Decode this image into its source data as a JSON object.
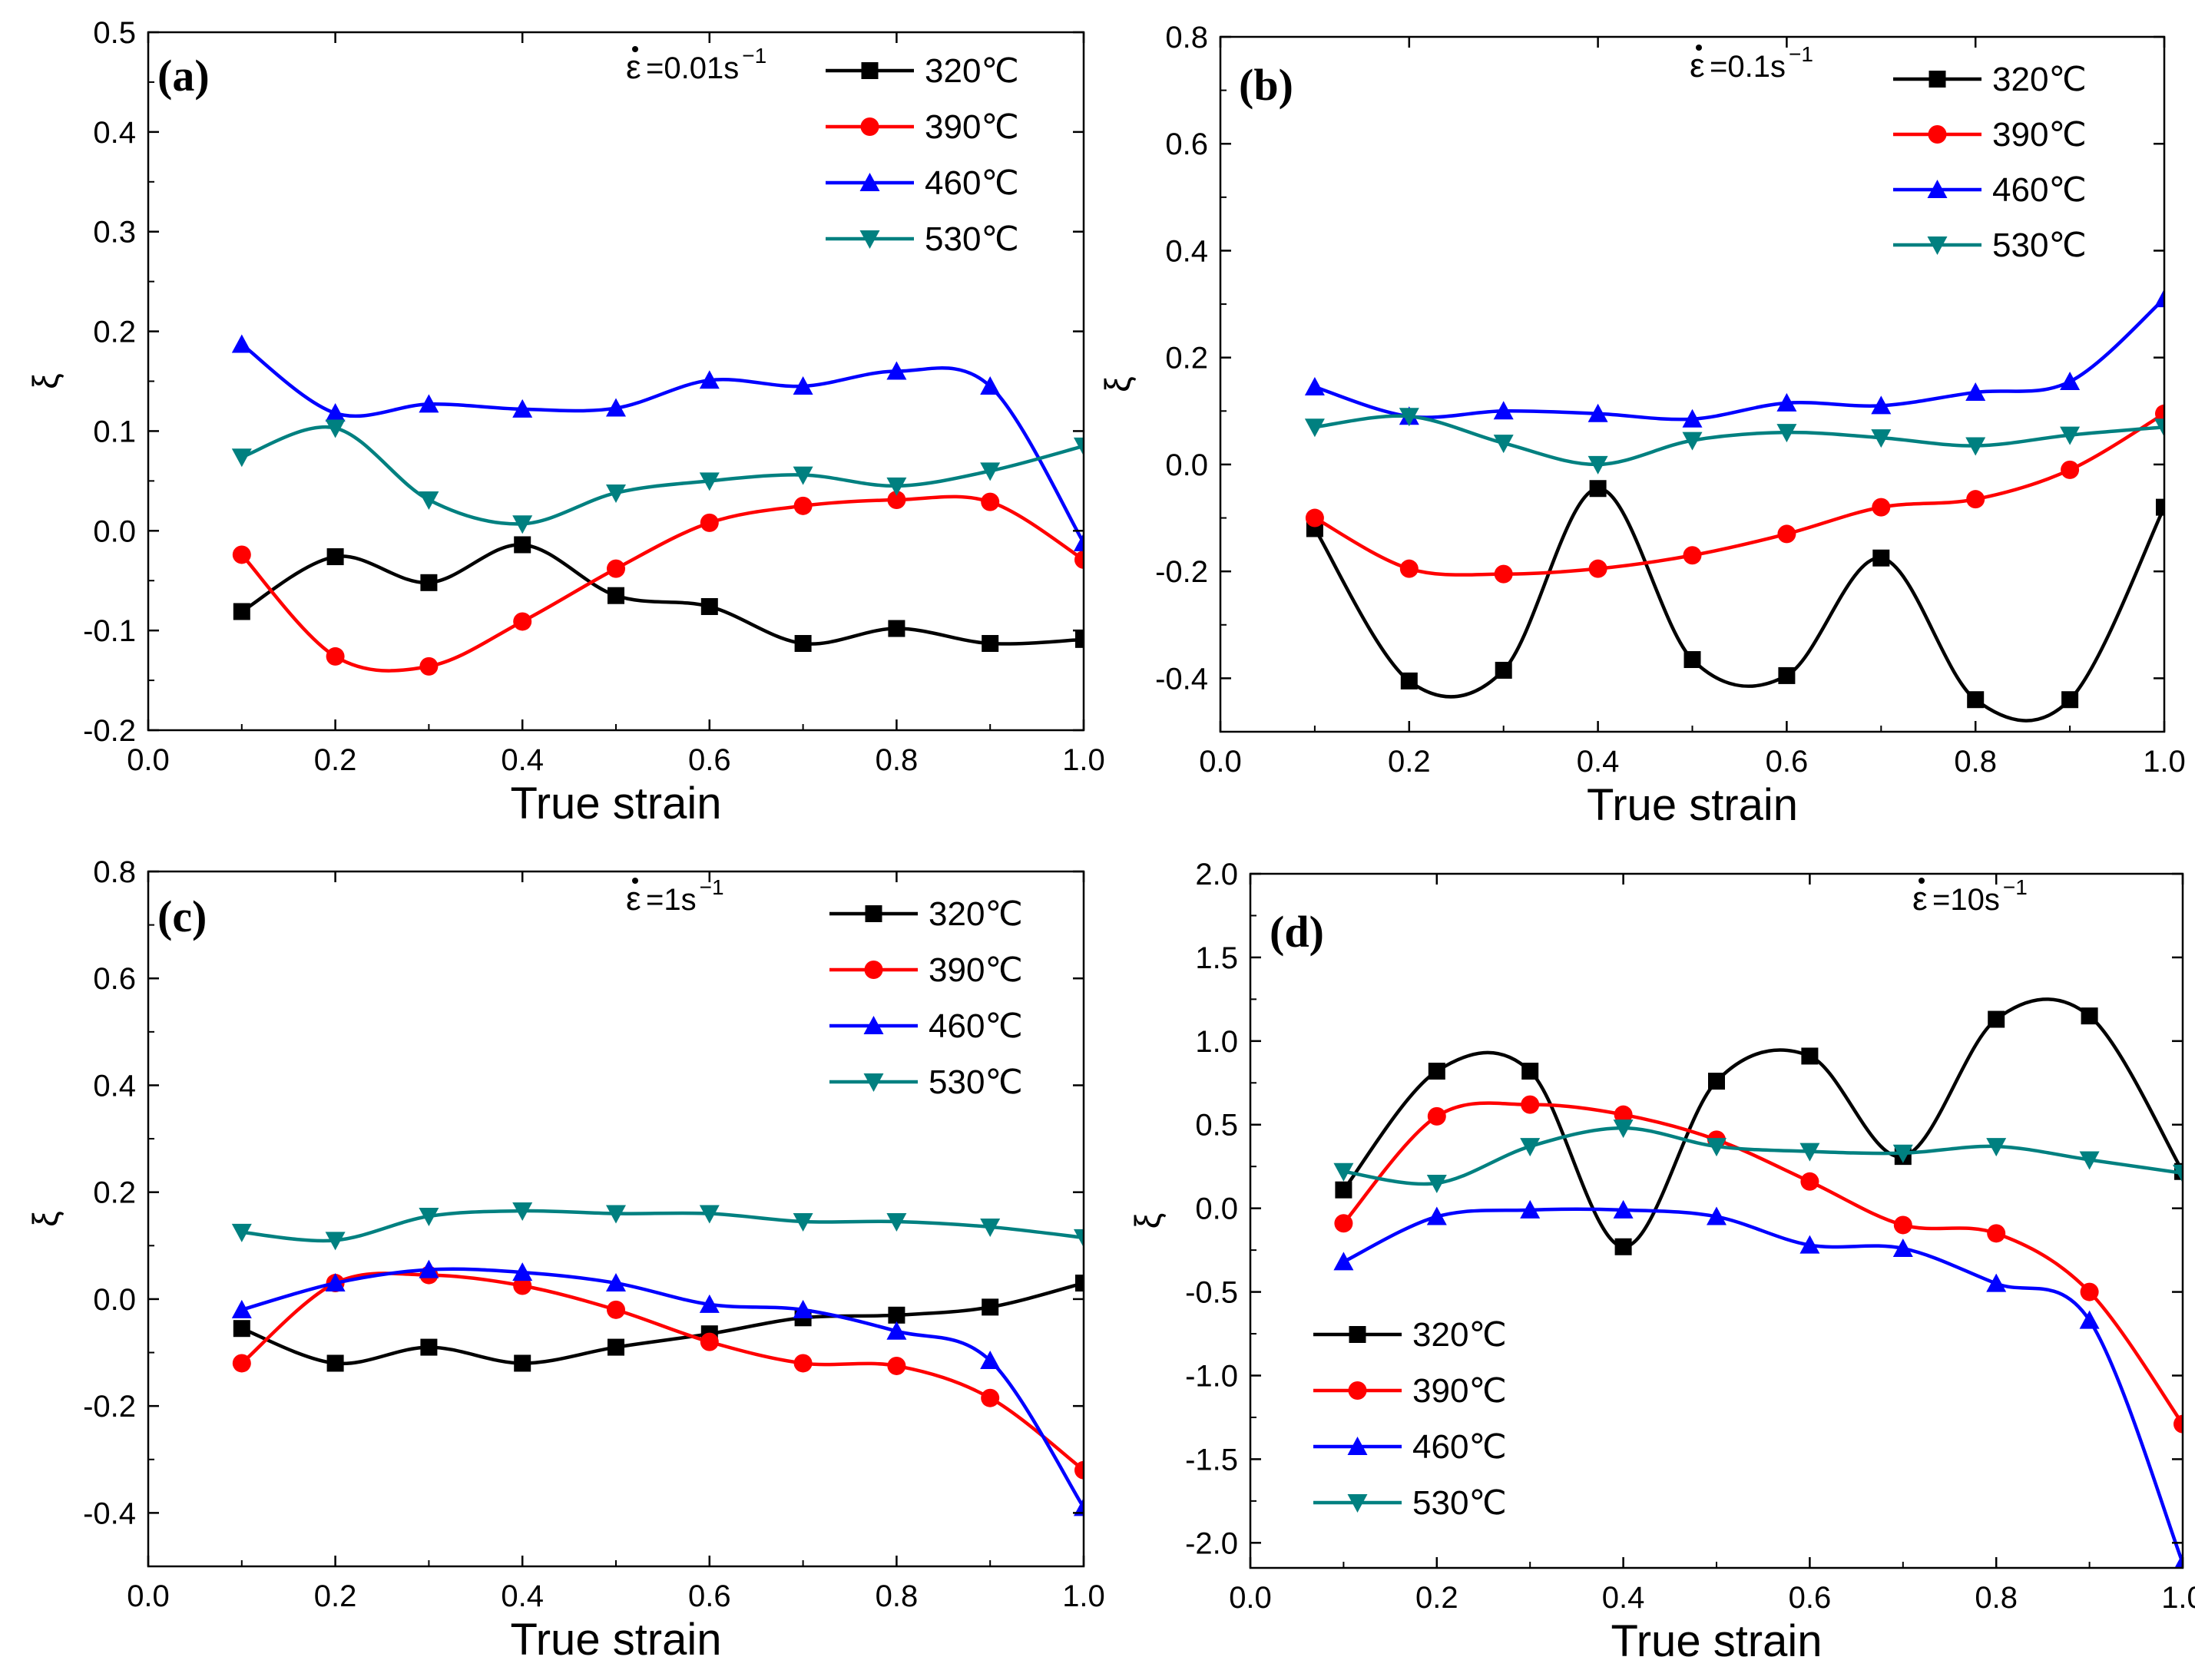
{
  "chart_data": [
    {
      "type": "line",
      "panel_label": "(a)",
      "rate_symbol": "ε",
      "rate_text": "=0.01s",
      "rate_exp": "−1",
      "xlabel": "True strain",
      "ylabel": "ξ",
      "xlim": [
        0.0,
        1.0
      ],
      "ylim": [
        -0.2,
        0.5
      ],
      "xticks": [
        "0.0",
        "0.2",
        "0.4",
        "0.6",
        "0.8",
        "1.0"
      ],
      "yticks": [
        "-0.2",
        "-0.1",
        "0.0",
        "0.1",
        "0.2",
        "0.3",
        "0.4",
        "0.5"
      ],
      "legend_position": "top-right",
      "x": [
        0.1,
        0.2,
        0.3,
        0.4,
        0.5,
        0.6,
        0.7,
        0.8,
        0.9,
        1.0
      ],
      "series": [
        {
          "name": "320℃",
          "color": "#000000",
          "marker": "square",
          "values": [
            -0.081,
            -0.026,
            -0.052,
            -0.014,
            -0.065,
            -0.076,
            -0.113,
            -0.098,
            -0.113,
            -0.109
          ]
        },
        {
          "name": "390℃",
          "color": "#ff0000",
          "marker": "circle",
          "values": [
            -0.024,
            -0.126,
            -0.136,
            -0.091,
            -0.038,
            0.008,
            0.025,
            0.031,
            0.029,
            -0.029
          ]
        },
        {
          "name": "460℃",
          "color": "#0000ff",
          "marker": "triangle-up",
          "values": [
            0.187,
            0.118,
            0.127,
            0.122,
            0.123,
            0.151,
            0.145,
            0.16,
            0.145,
            -0.012
          ]
        },
        {
          "name": "530℃",
          "color": "#008080",
          "marker": "triangle-down",
          "values": [
            0.074,
            0.103,
            0.031,
            0.007,
            0.038,
            0.05,
            0.056,
            0.045,
            0.06,
            0.085
          ]
        }
      ]
    },
    {
      "type": "line",
      "panel_label": "(b)",
      "rate_symbol": "ε",
      "rate_text": "=0.1s",
      "rate_exp": "−1",
      "xlabel": "True strain",
      "ylabel": "ξ",
      "xlim": [
        0.0,
        1.0
      ],
      "ylim": [
        -0.5,
        0.8
      ],
      "xticks": [
        "0.0",
        "0.2",
        "0.4",
        "0.6",
        "0.8",
        "1.0"
      ],
      "yticks": [
        "-0.4",
        "-0.2",
        "0.0",
        "0.2",
        "0.4",
        "0.6",
        "0.8"
      ],
      "legend_position": "top-right",
      "x": [
        0.1,
        0.2,
        0.3,
        0.4,
        0.5,
        0.6,
        0.7,
        0.8,
        0.9,
        1.0
      ],
      "series": [
        {
          "name": "320℃",
          "color": "#000000",
          "marker": "square",
          "values": [
            -0.12,
            -0.405,
            -0.385,
            -0.045,
            -0.365,
            -0.395,
            -0.175,
            -0.44,
            -0.44,
            -0.08
          ]
        },
        {
          "name": "390℃",
          "color": "#ff0000",
          "marker": "circle",
          "values": [
            -0.1,
            -0.195,
            -0.205,
            -0.195,
            -0.17,
            -0.13,
            -0.08,
            -0.065,
            -0.01,
            0.095
          ]
        },
        {
          "name": "460℃",
          "color": "#0000ff",
          "marker": "triangle-up",
          "values": [
            0.145,
            0.09,
            0.1,
            0.095,
            0.085,
            0.115,
            0.11,
            0.135,
            0.155,
            0.31
          ]
        },
        {
          "name": "530℃",
          "color": "#008080",
          "marker": "triangle-down",
          "values": [
            0.07,
            0.09,
            0.04,
            0.0,
            0.045,
            0.06,
            0.05,
            0.035,
            0.055,
            0.07
          ]
        }
      ]
    },
    {
      "type": "line",
      "panel_label": "(c)",
      "rate_symbol": "ε",
      "rate_text": "=1s",
      "rate_exp": "−1",
      "xlabel": "True strain",
      "ylabel": "ξ",
      "xlim": [
        0.0,
        1.0
      ],
      "ylim": [
        -0.5,
        0.8
      ],
      "xticks": [
        "0.0",
        "0.2",
        "0.4",
        "0.6",
        "0.8",
        "1.0"
      ],
      "yticks": [
        "-0.4",
        "-0.2",
        "0.0",
        "0.2",
        "0.4",
        "0.6",
        "0.8"
      ],
      "legend_position": "top-right",
      "x": [
        0.1,
        0.2,
        0.3,
        0.4,
        0.5,
        0.6,
        0.7,
        0.8,
        0.9,
        1.0
      ],
      "series": [
        {
          "name": "320℃",
          "color": "#000000",
          "marker": "square",
          "values": [
            -0.055,
            -0.12,
            -0.09,
            -0.12,
            -0.09,
            -0.065,
            -0.035,
            -0.03,
            -0.015,
            0.03
          ]
        },
        {
          "name": "390℃",
          "color": "#ff0000",
          "marker": "circle",
          "values": [
            -0.12,
            0.03,
            0.045,
            0.025,
            -0.02,
            -0.08,
            -0.12,
            -0.125,
            -0.185,
            -0.32
          ]
        },
        {
          "name": "460℃",
          "color": "#0000ff",
          "marker": "triangle-up",
          "values": [
            -0.02,
            0.03,
            0.055,
            0.05,
            0.03,
            -0.01,
            -0.02,
            -0.06,
            -0.115,
            -0.39
          ]
        },
        {
          "name": "530℃",
          "color": "#008080",
          "marker": "triangle-down",
          "values": [
            0.125,
            0.11,
            0.155,
            0.165,
            0.16,
            0.16,
            0.145,
            0.145,
            0.135,
            0.115
          ]
        }
      ]
    },
    {
      "type": "line",
      "panel_label": "(d)",
      "rate_symbol": "ε",
      "rate_text": "=10s",
      "rate_exp": "−1",
      "xlabel": "True strain",
      "ylabel": "ξ",
      "xlim": [
        0.0,
        1.0
      ],
      "ylim": [
        -2.15,
        2.0
      ],
      "xticks": [
        "0.0",
        "0.2",
        "0.4",
        "0.6",
        "0.8",
        "1.0"
      ],
      "yticks": [
        "-2.0",
        "-1.5",
        "-1.0",
        "-0.5",
        "0.0",
        "0.5",
        "1.0",
        "1.5",
        "2.0"
      ],
      "legend_position": "bottom-left",
      "x": [
        0.1,
        0.2,
        0.3,
        0.4,
        0.5,
        0.6,
        0.7,
        0.8,
        0.9,
        1.0
      ],
      "series": [
        {
          "name": "320℃",
          "color": "#000000",
          "marker": "square",
          "values": [
            0.11,
            0.82,
            0.82,
            -0.23,
            0.76,
            0.91,
            0.31,
            1.13,
            1.15,
            0.22
          ]
        },
        {
          "name": "390℃",
          "color": "#ff0000",
          "marker": "circle",
          "values": [
            -0.09,
            0.55,
            0.62,
            0.56,
            0.41,
            0.16,
            -0.1,
            -0.15,
            -0.5,
            -1.29
          ]
        },
        {
          "name": "460℃",
          "color": "#0000ff",
          "marker": "triangle-up",
          "values": [
            -0.32,
            -0.05,
            -0.01,
            -0.01,
            -0.05,
            -0.22,
            -0.24,
            -0.45,
            -0.67,
            -2.12
          ]
        },
        {
          "name": "530℃",
          "color": "#008080",
          "marker": "triangle-down",
          "values": [
            0.22,
            0.15,
            0.37,
            0.48,
            0.37,
            0.34,
            0.33,
            0.37,
            0.29,
            0.21
          ]
        }
      ]
    }
  ]
}
